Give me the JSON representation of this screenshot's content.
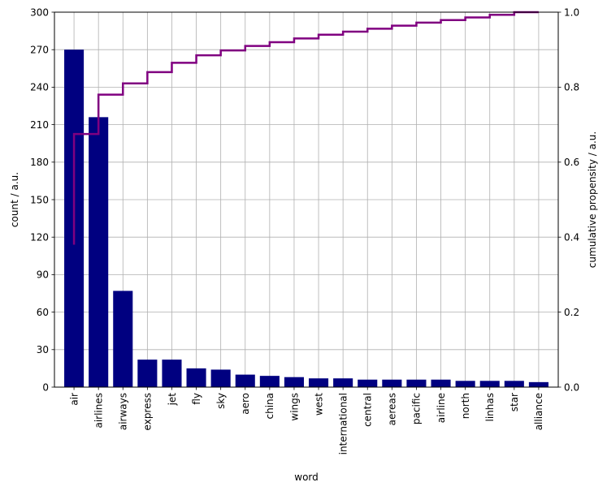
{
  "chart_data": {
    "type": "bar",
    "xlabel": "word",
    "ylabel": "count / a.u.",
    "y2label": "cumulative propensity / a.u.",
    "ylim": [
      0,
      300
    ],
    "yticks": [
      0,
      30,
      60,
      90,
      120,
      150,
      180,
      210,
      240,
      270,
      300
    ],
    "y2lim": [
      0.0,
      1.0
    ],
    "y2ticks": [
      "0.0",
      "0.2",
      "0.4",
      "0.6",
      "0.8",
      "1.0"
    ],
    "grid": true,
    "categories": [
      "air",
      "airlines",
      "airways",
      "express",
      "jet",
      "fly",
      "sky",
      "aero",
      "china",
      "wings",
      "west",
      "international",
      "central",
      "aereas",
      "pacific",
      "airline",
      "north",
      "linhas",
      "star",
      "alliance"
    ],
    "values": [
      270,
      216,
      77,
      22,
      22,
      15,
      14,
      10,
      9,
      8,
      7,
      7,
      6,
      6,
      6,
      6,
      5,
      5,
      5,
      4
    ],
    "cumulative": [
      0.38,
      0.675,
      0.78,
      0.81,
      0.84,
      0.865,
      0.885,
      0.898,
      0.91,
      0.92,
      0.93,
      0.94,
      0.948,
      0.956,
      0.964,
      0.972,
      0.979,
      0.986,
      0.993,
      1.0
    ],
    "colors": {
      "bar": "#000080",
      "line": "#800080",
      "grid": "#b0b0b0"
    }
  }
}
